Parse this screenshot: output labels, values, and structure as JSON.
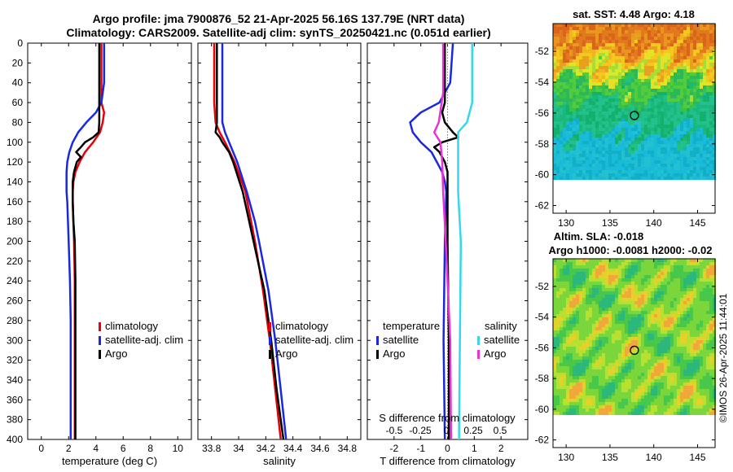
{
  "title_line1": "Argo profile: jma 7900876_52 21-Apr-2025 56.16S 137.79E (NRT data)",
  "title_line2": "Climatology: CARS2009. Satellite-adj clim: synTS_20250421.nc (0.051d earlier)",
  "credit": "©IMOS 26-Apr-2025 11:44:01",
  "colors": {
    "climatology": "#e8000b",
    "satellite": "#1a28e0",
    "argo": "#000000",
    "satellite_salinity": "#33d9e8",
    "argo_salinity": "#e632d6"
  },
  "chart_data": [
    {
      "type": "line",
      "name": "temperature-profile",
      "xlabel": "temperature (deg C)",
      "ylabel": "",
      "xlim": [
        -1,
        11
      ],
      "ylim": [
        400,
        0
      ],
      "xticks": [
        0,
        2,
        4,
        6,
        8,
        10
      ],
      "yticks": [
        0,
        20,
        40,
        60,
        80,
        100,
        120,
        140,
        160,
        180,
        200,
        220,
        240,
        260,
        280,
        300,
        320,
        340,
        360,
        380,
        400
      ],
      "legend": [
        "climatology",
        "satellite-adj. clim",
        "Argo"
      ],
      "series": [
        {
          "name": "climatology",
          "color_key": "climatology",
          "depth": [
            0,
            40,
            60,
            70,
            80,
            90,
            100,
            110,
            120,
            130,
            140,
            150,
            160,
            180,
            200,
            240,
            300,
            350,
            400
          ],
          "values": [
            4.4,
            4.4,
            4.4,
            4.6,
            4.5,
            4.3,
            3.8,
            3.2,
            2.8,
            2.5,
            2.35,
            2.3,
            2.3,
            2.35,
            2.4,
            2.45,
            2.45,
            2.45,
            2.45
          ]
        },
        {
          "name": "satellite-adj. clim",
          "color_key": "satellite",
          "depth": [
            0,
            40,
            60,
            70,
            80,
            90,
            100,
            110,
            120,
            130,
            140,
            150,
            160,
            200,
            240,
            280,
            320,
            360,
            400
          ],
          "values": [
            4.6,
            4.6,
            4.4,
            4.0,
            3.3,
            2.7,
            2.3,
            2.05,
            1.9,
            1.85,
            1.85,
            1.85,
            1.9,
            2.0,
            2.1,
            2.15,
            2.15,
            2.15,
            2.15
          ]
        },
        {
          "name": "Argo",
          "color_key": "argo",
          "depth": [
            0,
            50,
            80,
            90,
            95,
            100,
            105,
            110,
            115,
            120,
            130,
            140,
            160,
            180,
            200,
            240,
            280,
            320,
            360,
            400
          ],
          "values": [
            4.25,
            4.25,
            4.25,
            4.2,
            3.8,
            3.2,
            2.9,
            2.55,
            2.9,
            2.6,
            2.4,
            2.3,
            2.3,
            2.35,
            2.45,
            2.5,
            2.5,
            2.5,
            2.5,
            2.5
          ]
        }
      ]
    },
    {
      "type": "line",
      "name": "salinity-profile",
      "xlabel": "salinity",
      "xlim": [
        33.7,
        34.9
      ],
      "ylim": [
        400,
        0
      ],
      "xticks": [
        "33.8",
        "34",
        "34.2",
        "34.4",
        "34.6",
        "34.8"
      ],
      "legend": [
        "climatology",
        "satellite-adj. clim",
        "Argo"
      ],
      "series": [
        {
          "name": "climatology",
          "color_key": "climatology",
          "depth": [
            0,
            60,
            80,
            90,
            100,
            120,
            150,
            200,
            250,
            300,
            350,
            400
          ],
          "values": [
            33.82,
            33.82,
            33.83,
            33.86,
            33.9,
            33.97,
            34.05,
            34.12,
            34.18,
            34.23,
            34.27,
            34.31
          ]
        },
        {
          "name": "satellite-adj. clim",
          "color_key": "satellite",
          "depth": [
            0,
            60,
            80,
            90,
            100,
            120,
            150,
            180,
            200,
            250,
            300,
            350,
            400
          ],
          "values": [
            33.88,
            33.88,
            33.88,
            33.9,
            33.93,
            33.99,
            34.06,
            34.12,
            34.15,
            34.22,
            34.27,
            34.31,
            34.35
          ]
        },
        {
          "name": "Argo",
          "color_key": "argo",
          "depth": [
            0,
            60,
            80,
            90,
            95,
            100,
            110,
            120,
            150,
            200,
            250,
            300,
            350,
            400
          ],
          "values": [
            33.84,
            33.84,
            33.84,
            33.83,
            33.86,
            33.88,
            33.93,
            33.96,
            34.03,
            34.11,
            34.19,
            34.24,
            34.28,
            34.33
          ]
        }
      ]
    },
    {
      "type": "line",
      "name": "difference-profile",
      "xlabel": "T difference from climatology",
      "top_xlabel": "S difference from climatology",
      "xlim": [
        -3,
        3
      ],
      "ylim": [
        400,
        0
      ],
      "xticks": [
        "-2",
        "-1",
        "0",
        "1",
        "2"
      ],
      "top_ticks": [
        "-0.5",
        "-0.25",
        "0",
        "0.25",
        "0.5"
      ],
      "legend_t_title": "temperature",
      "legend_s_title": "salinity",
      "legend_entries": [
        "satellite",
        "Argo",
        "satellite",
        "Argo"
      ],
      "series": [
        {
          "name": "T satellite",
          "color_key": "satellite",
          "depth": [
            0,
            40,
            60,
            70,
            80,
            90,
            100,
            110,
            120,
            130,
            140,
            150,
            200,
            300,
            400
          ],
          "values": [
            0.2,
            0.1,
            -0.3,
            -1.0,
            -1.4,
            -1.3,
            -1.0,
            -0.6,
            -0.4,
            -0.2,
            -0.1,
            -0.05,
            -0.1,
            -0.15,
            -0.1
          ]
        },
        {
          "name": "T Argo",
          "color_key": "argo",
          "depth": [
            0,
            60,
            70,
            80,
            90,
            95,
            100,
            105,
            110,
            120,
            130,
            150,
            200,
            300,
            400
          ],
          "values": [
            -0.1,
            -0.1,
            -0.2,
            -0.1,
            0.2,
            0.4,
            -0.2,
            -0.5,
            -0.3,
            -0.1,
            0.0,
            0.0,
            0.0,
            0.05,
            0.05
          ]
        },
        {
          "name": "S satellite",
          "color_key": "satellite_salinity",
          "depth": [
            0,
            60,
            80,
            90,
            100,
            150,
            200,
            300,
            400
          ],
          "values": [
            0.28,
            0.28,
            0.22,
            0.12,
            0.12,
            0.12,
            0.15,
            0.14,
            0.13
          ]
        },
        {
          "name": "S Argo",
          "color_key": "argo_salinity",
          "depth": [
            0,
            50,
            80,
            90,
            100,
            120,
            150,
            200,
            300,
            400
          ],
          "values": [
            -0.05,
            -0.05,
            -0.1,
            -0.15,
            -0.08,
            -0.06,
            -0.05,
            -0.02,
            0.03,
            0.04
          ]
        }
      ]
    },
    {
      "type": "heatmap",
      "name": "sst-map",
      "title": "sat. SST: 4.48 Argo: 4.18",
      "xticks": [
        "130",
        "135",
        "140",
        "145"
      ],
      "yticks": [
        "-52",
        "-54",
        "-56",
        "-58",
        "-60",
        "-62"
      ],
      "xlim": [
        128.5,
        147
      ],
      "ylim": [
        -62.5,
        -50.2
      ],
      "marker": {
        "lon": 137.79,
        "lat": -56.16
      }
    },
    {
      "type": "heatmap",
      "name": "sla-map",
      "title_line1": "Altim. SLA: -0.018",
      "title_line2": "Argo h1000: -0.0081 h2000: -0.02",
      "xticks": [
        "130",
        "135",
        "140",
        "145"
      ],
      "yticks": [
        "-52",
        "-54",
        "-56",
        "-58",
        "-60",
        "-62"
      ],
      "xlim": [
        128.5,
        147
      ],
      "ylim": [
        -62.5,
        -50.2
      ],
      "marker": {
        "lon": 137.79,
        "lat": -56.16
      }
    }
  ]
}
